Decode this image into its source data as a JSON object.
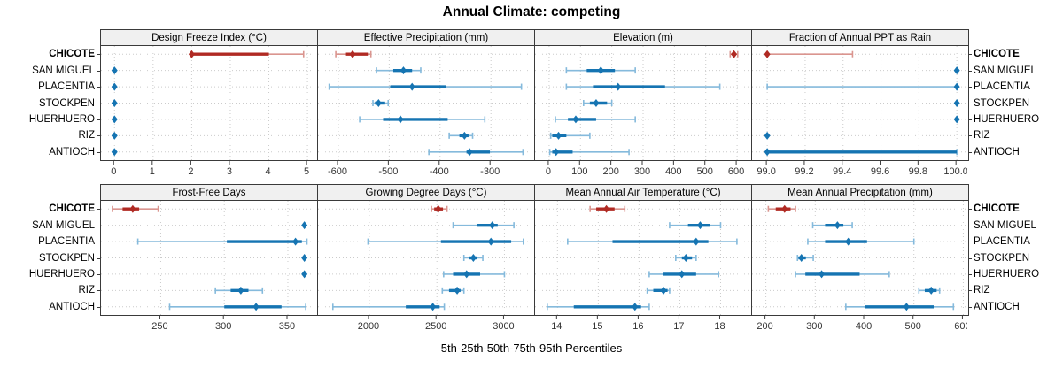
{
  "title": "Annual Climate: competing",
  "caption": "5th-25th-50th-75th-95th Percentiles",
  "sites": [
    "CHICOTE",
    "SAN MIGUEL",
    "PLACENTIA",
    "STOCKPEN",
    "HUERHUERO",
    "RIZ",
    "ANTIOCH"
  ],
  "highlight_site": "CHICOTE",
  "colors": {
    "highlight": "#B02A23",
    "highlight_light": "#DA958F",
    "normal": "#1574B2",
    "normal_light": "#85BADC",
    "grid": "#CBCBCB",
    "strip_bg": "#F0F0F0",
    "border": "#3A3A3A",
    "axis_text": "#333333"
  },
  "chart_data": {
    "type": "trellis-percentile-segments",
    "percentile_labels": [
      "5th",
      "25th",
      "50th",
      "75th",
      "95th"
    ],
    "layout": {
      "rows": 2,
      "cols": 4
    },
    "panels": [
      {
        "title": "Design Freeze Index (°C)",
        "xlim": [
          -0.35,
          5.25
        ],
        "ticks": [
          0,
          1,
          2,
          3,
          4,
          5
        ],
        "tick_labels": [
          "0",
          "1",
          "2",
          "3",
          "4",
          "5"
        ],
        "series": [
          {
            "name": "CHICOTE",
            "q": [
              2,
              2,
              2,
              4,
              4.9
            ]
          },
          {
            "name": "SAN MIGUEL",
            "q": [
              0,
              0,
              0,
              0,
              0
            ]
          },
          {
            "name": "PLACENTIA",
            "q": [
              0,
              0,
              0,
              0,
              0
            ]
          },
          {
            "name": "STOCKPEN",
            "q": [
              0,
              0,
              0,
              0,
              0
            ]
          },
          {
            "name": "HUERHUERO",
            "q": [
              0,
              0,
              0,
              0,
              0
            ]
          },
          {
            "name": "RIZ",
            "q": [
              0,
              0,
              0,
              0,
              0
            ]
          },
          {
            "name": "ANTIOCH",
            "q": [
              0,
              0,
              0,
              0,
              0
            ]
          }
        ]
      },
      {
        "title": "Effective Precipitation (mm)",
        "xlim": [
          -640,
          -215
        ],
        "ticks": [
          -600,
          -500,
          -400,
          -300
        ],
        "tick_labels": [
          "-600",
          "-500",
          "-400",
          "-300"
        ],
        "series": [
          {
            "name": "CHICOTE",
            "q": [
              -605,
              -585,
              -572,
              -542,
              -536
            ]
          },
          {
            "name": "SAN MIGUEL",
            "q": [
              -525,
              -492,
              -472,
              -455,
              -438
            ]
          },
          {
            "name": "PLACENTIA",
            "q": [
              -618,
              -498,
              -455,
              -388,
              -240
            ]
          },
          {
            "name": "STOCKPEN",
            "q": [
              -532,
              -528,
              -521,
              -508,
              -502
            ]
          },
          {
            "name": "HUERHUERO",
            "q": [
              -558,
              -512,
              -478,
              -385,
              -312
            ]
          },
          {
            "name": "RIZ",
            "q": [
              -382,
              -362,
              -352,
              -344,
              -336
            ]
          },
          {
            "name": "ANTIOCH",
            "q": [
              -422,
              -348,
              -342,
              -302,
              -237
            ]
          }
        ]
      },
      {
        "title": "Elevation (m)",
        "xlim": [
          -45,
          645
        ],
        "ticks": [
          0,
          100,
          200,
          300,
          400,
          500,
          600
        ],
        "tick_labels": [
          "0",
          "100",
          "200",
          "300",
          "400",
          "500",
          "600"
        ],
        "series": [
          {
            "name": "CHICOTE",
            "q": [
              578,
              585,
              590,
              596,
              602
            ]
          },
          {
            "name": "SAN MIGUEL",
            "q": [
              55,
              120,
              165,
              210,
              275
            ]
          },
          {
            "name": "PLACENTIA",
            "q": [
              55,
              140,
              220,
              370,
              545
            ]
          },
          {
            "name": "STOCKPEN",
            "q": [
              110,
              130,
              150,
              185,
              200
            ]
          },
          {
            "name": "HUERHUERO",
            "q": [
              20,
              60,
              85,
              150,
              275
            ]
          },
          {
            "name": "RIZ",
            "q": [
              5,
              10,
              30,
              55,
              130
            ]
          },
          {
            "name": "ANTIOCH",
            "q": [
              2,
              10,
              22,
              75,
              255
            ]
          }
        ]
      },
      {
        "title": "Fraction of Annual PPT as Rain",
        "xlim": [
          98.92,
          100.06
        ],
        "ticks": [
          99.0,
          99.2,
          99.4,
          99.6,
          99.8,
          100.0
        ],
        "tick_labels": [
          "99.0",
          "99.2",
          "99.4",
          "99.6",
          "99.8",
          "100.0"
        ],
        "series": [
          {
            "name": "CHICOTE",
            "q": [
              99.0,
              99.0,
              99.0,
              99.0,
              99.45
            ]
          },
          {
            "name": "SAN MIGUEL",
            "q": [
              100.0,
              100.0,
              100.0,
              100.0,
              100.0
            ]
          },
          {
            "name": "PLACENTIA",
            "q": [
              99.0,
              100.0,
              100.0,
              100.0,
              100.0
            ]
          },
          {
            "name": "STOCKPEN",
            "q": [
              100.0,
              100.0,
              100.0,
              100.0,
              100.0
            ]
          },
          {
            "name": "HUERHUERO",
            "q": [
              100.0,
              100.0,
              100.0,
              100.0,
              100.0
            ]
          },
          {
            "name": "RIZ",
            "q": [
              99.0,
              99.0,
              99.0,
              99.0,
              99.0
            ]
          },
          {
            "name": "ANTIOCH",
            "q": [
              99.0,
              99.0,
              99.0,
              100.0,
              100.0
            ]
          }
        ]
      },
      {
        "title": "Frost-Free Days",
        "xlim": [
          203,
          373
        ],
        "ticks": [
          250,
          300,
          350
        ],
        "tick_labels": [
          "250",
          "300",
          "350"
        ],
        "series": [
          {
            "name": "CHICOTE",
            "q": [
              212,
              220,
              228,
              233,
              248
            ]
          },
          {
            "name": "SAN MIGUEL",
            "q": [
              363,
              363,
              363,
              363,
              363
            ]
          },
          {
            "name": "PLACENTIA",
            "q": [
              232,
              302,
              356,
              361,
              365
            ]
          },
          {
            "name": "STOCKPEN",
            "q": [
              363,
              363,
              363,
              363,
              363
            ]
          },
          {
            "name": "HUERHUERO",
            "q": [
              363,
              363,
              363,
              363,
              363
            ]
          },
          {
            "name": "RIZ",
            "q": [
              293,
              305,
              313,
              319,
              330
            ]
          },
          {
            "name": "ANTIOCH",
            "q": [
              257,
              300,
              325,
              345,
              364
            ]
          }
        ]
      },
      {
        "title": "Growing Degree Days (°C)",
        "xlim": [
          1620,
          3220
        ],
        "ticks": [
          2000,
          2500,
          3000
        ],
        "tick_labels": [
          "2000",
          "2500",
          "3000"
        ],
        "series": [
          {
            "name": "CHICOTE",
            "q": [
              2460,
              2480,
              2510,
              2545,
              2575
            ]
          },
          {
            "name": "SAN MIGUEL",
            "q": [
              2620,
              2800,
              2910,
              2950,
              3070
            ]
          },
          {
            "name": "PLACENTIA",
            "q": [
              1990,
              2530,
              2900,
              3050,
              3140
            ]
          },
          {
            "name": "STOCKPEN",
            "q": [
              2700,
              2740,
              2770,
              2800,
              2840
            ]
          },
          {
            "name": "HUERHUERO",
            "q": [
              2550,
              2620,
              2720,
              2820,
              3000
            ]
          },
          {
            "name": "RIZ",
            "q": [
              2540,
              2590,
              2650,
              2675,
              2700
            ]
          },
          {
            "name": "ANTIOCH",
            "q": [
              1730,
              2270,
              2470,
              2520,
              2555
            ]
          }
        ]
      },
      {
        "title": "Mean Annual Air Temperature (°C)",
        "xlim": [
          13.45,
          18.75
        ],
        "ticks": [
          14,
          15,
          16,
          17,
          18
        ],
        "tick_labels": [
          "14",
          "15",
          "16",
          "17",
          "18"
        ],
        "series": [
          {
            "name": "CHICOTE",
            "q": [
              14.8,
              14.95,
              15.2,
              15.4,
              15.65
            ]
          },
          {
            "name": "SAN MIGUEL",
            "q": [
              16.75,
              17.2,
              17.5,
              17.75,
              18.0
            ]
          },
          {
            "name": "PLACENTIA",
            "q": [
              14.25,
              15.35,
              17.4,
              17.7,
              18.4
            ]
          },
          {
            "name": "STOCKPEN",
            "q": [
              16.9,
              17.05,
              17.15,
              17.3,
              17.4
            ]
          },
          {
            "name": "HUERHUERO",
            "q": [
              16.25,
              16.6,
              17.05,
              17.4,
              17.95
            ]
          },
          {
            "name": "RIZ",
            "q": [
              16.2,
              16.35,
              16.6,
              16.7,
              16.75
            ]
          },
          {
            "name": "ANTIOCH",
            "q": [
              13.75,
              14.4,
              15.9,
              16.05,
              16.25
            ]
          }
        ]
      },
      {
        "title": "Mean Annual Precipitation (mm)",
        "xlim": [
          172,
          610
        ],
        "ticks": [
          200,
          300,
          400,
          500,
          600
        ],
        "tick_labels": [
          "200",
          "300",
          "400",
          "500",
          "600"
        ],
        "series": [
          {
            "name": "CHICOTE",
            "q": [
              205,
              220,
              238,
              250,
              260
            ]
          },
          {
            "name": "SAN MIGUEL",
            "q": [
              295,
              320,
              345,
              357,
              375
            ]
          },
          {
            "name": "PLACENTIA",
            "q": [
              285,
              320,
              367,
              405,
              500
            ]
          },
          {
            "name": "STOCKPEN",
            "q": [
              264,
              266,
              272,
              281,
              296
            ]
          },
          {
            "name": "HUERHUERO",
            "q": [
              260,
              280,
              313,
              390,
              450
            ]
          },
          {
            "name": "RIZ",
            "q": [
              510,
              522,
              535,
              546,
              552
            ]
          },
          {
            "name": "ANTIOCH",
            "q": [
              362,
              400,
              485,
              540,
              580
            ]
          }
        ]
      }
    ]
  }
}
